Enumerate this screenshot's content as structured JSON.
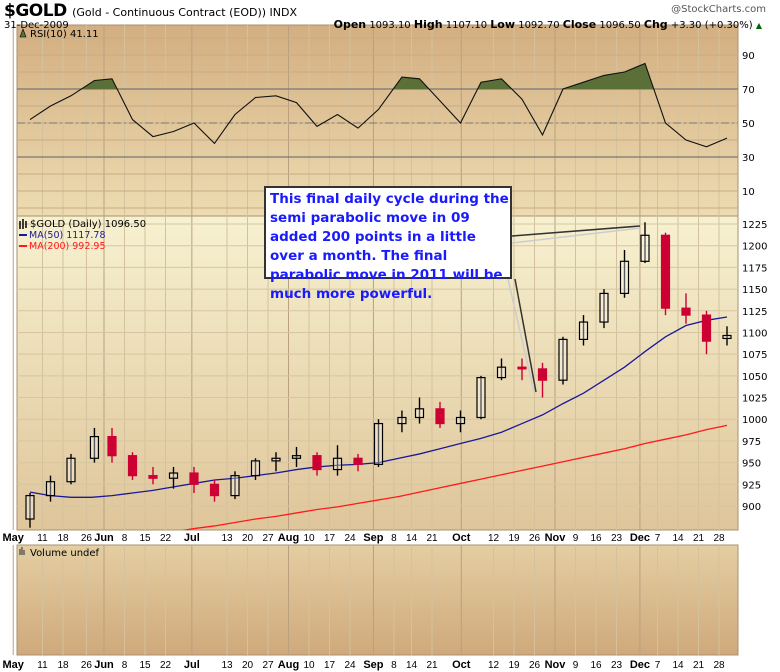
{
  "header": {
    "symbol": "$GOLD",
    "description": "(Gold - Continuous Contract (EOD)) INDX",
    "date": "31-Dec-2009",
    "brand": "@StockCharts.com",
    "open_label": "Open",
    "open": "1093.10",
    "high_label": "High",
    "high": "1107.10",
    "low_label": "Low",
    "low": "1092.70",
    "close_label": "Close",
    "close": "1096.50",
    "chg_label": "Chg",
    "chg": "+3.30 (+0.30%)"
  },
  "annotation": "This final daily cycle during the semi parabolic move in 09 added 200 points in a little over a month. The final parabolic move in 2011 will be much more powerful.",
  "colors": {
    "up": "#000000",
    "down": "#cc0033",
    "ma50": "#1a1a99",
    "ma200": "#ff1a1a",
    "rsi_fill": "#5a7038",
    "annotation_text": "#1a1aff"
  },
  "chart_data": [
    {
      "type": "line",
      "panel": "rsi",
      "legend": "RSI(10) 41.11",
      "ylim": [
        0,
        100
      ],
      "yticks": [
        10,
        30,
        50,
        70,
        90
      ],
      "overbought": 70,
      "oversold": 30,
      "midline": 50,
      "x": [
        "2009-05-04",
        "2009-05-11",
        "2009-05-18",
        "2009-05-26",
        "2009-06-01",
        "2009-06-08",
        "2009-06-15",
        "2009-06-22",
        "2009-06-29",
        "2009-07-06",
        "2009-07-13",
        "2009-07-20",
        "2009-07-27",
        "2009-08-03",
        "2009-08-10",
        "2009-08-17",
        "2009-08-24",
        "2009-08-31",
        "2009-09-08",
        "2009-09-14",
        "2009-09-21",
        "2009-09-28",
        "2009-10-05",
        "2009-10-12",
        "2009-10-19",
        "2009-10-26",
        "2009-11-02",
        "2009-11-09",
        "2009-11-16",
        "2009-11-23",
        "2009-11-30",
        "2009-12-07",
        "2009-12-14",
        "2009-12-21",
        "2009-12-28"
      ],
      "values": [
        52,
        60,
        66,
        75,
        76,
        52,
        42,
        45,
        50,
        38,
        55,
        65,
        66,
        62,
        48,
        55,
        47,
        58,
        77,
        76,
        63,
        50,
        74,
        76,
        64,
        43,
        70,
        74,
        78,
        80,
        85,
        50,
        40,
        36,
        41.11
      ]
    },
    {
      "type": "candlestick",
      "panel": "price",
      "legend": "$GOLD (Daily) 1096.50",
      "ylim": [
        880,
        1240
      ],
      "yticks": [
        900,
        925,
        950,
        975,
        1000,
        1025,
        1050,
        1075,
        1100,
        1125,
        1150,
        1175,
        1200,
        1225
      ],
      "ohlc": [
        [
          "2009-05-04",
          885,
          915,
          875,
          912
        ],
        [
          "2009-05-11",
          912,
          935,
          905,
          928
        ],
        [
          "2009-05-18",
          928,
          960,
          925,
          955
        ],
        [
          "2009-05-26",
          955,
          990,
          950,
          980
        ],
        [
          "2009-06-01",
          980,
          990,
          950,
          958
        ],
        [
          "2009-06-08",
          958,
          962,
          930,
          935
        ],
        [
          "2009-06-15",
          935,
          945,
          925,
          932
        ],
        [
          "2009-06-22",
          932,
          945,
          920,
          938
        ],
        [
          "2009-06-29",
          938,
          945,
          915,
          925
        ],
        [
          "2009-07-06",
          925,
          930,
          905,
          912
        ],
        [
          "2009-07-13",
          912,
          940,
          908,
          935
        ],
        [
          "2009-07-20",
          935,
          955,
          930,
          952
        ],
        [
          "2009-07-27",
          952,
          962,
          940,
          955
        ],
        [
          "2009-08-03",
          955,
          968,
          945,
          958
        ],
        [
          "2009-08-10",
          958,
          962,
          935,
          942
        ],
        [
          "2009-08-17",
          942,
          970,
          935,
          955
        ],
        [
          "2009-08-24",
          955,
          960,
          940,
          948
        ],
        [
          "2009-08-31",
          948,
          1000,
          945,
          995
        ],
        [
          "2009-09-08",
          995,
          1010,
          985,
          1002
        ],
        [
          "2009-09-14",
          1002,
          1025,
          995,
          1012
        ],
        [
          "2009-09-21",
          1012,
          1020,
          990,
          995
        ],
        [
          "2009-09-28",
          995,
          1010,
          985,
          1002
        ],
        [
          "2009-10-05",
          1002,
          1050,
          1000,
          1048
        ],
        [
          "2009-10-12",
          1048,
          1070,
          1045,
          1060
        ],
        [
          "2009-10-19",
          1060,
          1070,
          1045,
          1058
        ],
        [
          "2009-10-26",
          1058,
          1065,
          1025,
          1045
        ],
        [
          "2009-11-02",
          1045,
          1095,
          1040,
          1092
        ],
        [
          "2009-11-09",
          1092,
          1120,
          1085,
          1112
        ],
        [
          "2009-11-16",
          1112,
          1150,
          1105,
          1145
        ],
        [
          "2009-11-23",
          1145,
          1195,
          1140,
          1182
        ],
        [
          "2009-11-30",
          1182,
          1227,
          1180,
          1212
        ],
        [
          "2009-12-07",
          1212,
          1215,
          1120,
          1128
        ],
        [
          "2009-12-14",
          1128,
          1145,
          1110,
          1120
        ],
        [
          "2009-12-21",
          1120,
          1125,
          1075,
          1090
        ],
        [
          "2009-12-28",
          1093.1,
          1107.1,
          1085,
          1096.5
        ]
      ],
      "series": [
        {
          "name": "MA(50) 1117.78",
          "start": "2009-05-04",
          "values": [
            916,
            912,
            910,
            910,
            912,
            915,
            918,
            922,
            926,
            930,
            932,
            935,
            938,
            942,
            945,
            947,
            948,
            950,
            955,
            960,
            966,
            972,
            978,
            985,
            995,
            1005,
            1018,
            1030,
            1045,
            1060,
            1078,
            1095,
            1108,
            1114,
            1117.78
          ]
        },
        {
          "name": "MA(200) 992.95",
          "start": "2009-06-22",
          "values": [
            870,
            874,
            877,
            881,
            885,
            888,
            892,
            896,
            899,
            903,
            907,
            911,
            916,
            921,
            926,
            931,
            936,
            941,
            946,
            951,
            956,
            961,
            966,
            972,
            977,
            982,
            988,
            992.95
          ]
        }
      ]
    },
    {
      "type": "bar",
      "panel": "volume",
      "legend": "Volume undef",
      "values": []
    }
  ],
  "xaxis": {
    "ticks": [
      {
        "label": "May",
        "date": "2009-05-01",
        "major": true
      },
      {
        "label": "11",
        "date": "2009-05-11"
      },
      {
        "label": "18",
        "date": "2009-05-18"
      },
      {
        "label": "26",
        "date": "2009-05-26"
      },
      {
        "label": "Jun",
        "date": "2009-06-01",
        "major": true
      },
      {
        "label": "8",
        "date": "2009-06-08"
      },
      {
        "label": "15",
        "date": "2009-06-15"
      },
      {
        "label": "22",
        "date": "2009-06-22"
      },
      {
        "label": "Jul",
        "date": "2009-07-01",
        "major": true
      },
      {
        "label": "13",
        "date": "2009-07-13"
      },
      {
        "label": "20",
        "date": "2009-07-20"
      },
      {
        "label": "27",
        "date": "2009-07-27"
      },
      {
        "label": "Aug",
        "date": "2009-08-03",
        "major": true
      },
      {
        "label": "10",
        "date": "2009-08-10"
      },
      {
        "label": "17",
        "date": "2009-08-17"
      },
      {
        "label": "24",
        "date": "2009-08-24"
      },
      {
        "label": "Sep",
        "date": "2009-09-01",
        "major": true
      },
      {
        "label": "8",
        "date": "2009-09-08"
      },
      {
        "label": "14",
        "date": "2009-09-14"
      },
      {
        "label": "21",
        "date": "2009-09-21"
      },
      {
        "label": "Oct",
        "date": "2009-10-01",
        "major": true
      },
      {
        "label": "12",
        "date": "2009-10-12"
      },
      {
        "label": "19",
        "date": "2009-10-19"
      },
      {
        "label": "26",
        "date": "2009-10-26"
      },
      {
        "label": "Nov",
        "date": "2009-11-02",
        "major": true
      },
      {
        "label": "9",
        "date": "2009-11-09"
      },
      {
        "label": "16",
        "date": "2009-11-16"
      },
      {
        "label": "23",
        "date": "2009-11-23"
      },
      {
        "label": "Dec",
        "date": "2009-12-01",
        "major": true
      },
      {
        "label": "7",
        "date": "2009-12-07"
      },
      {
        "label": "14",
        "date": "2009-12-14"
      },
      {
        "label": "21",
        "date": "2009-12-21"
      },
      {
        "label": "28",
        "date": "2009-12-28"
      }
    ]
  }
}
